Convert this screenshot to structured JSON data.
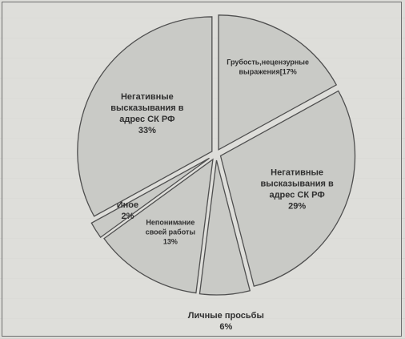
{
  "chart_data": {
    "type": "pie",
    "title": "",
    "slices": [
      {
        "label": "Грубость,нецензурные выражения",
        "value": 17,
        "value_label": "17%"
      },
      {
        "label": "Негативные высказывания в адрес СК РФ",
        "value": 29,
        "value_label": "29%"
      },
      {
        "label": "Личные просьбы",
        "value": 6,
        "value_label": "6%"
      },
      {
        "label": "Непонимание своей работы",
        "value": 13,
        "value_label": "13%"
      },
      {
        "label": "Иное",
        "value": 2,
        "value_label": "2%"
      },
      {
        "label": "Негативные высказывания в адрес СК РФ",
        "value": 33,
        "value_label": "33%"
      }
    ],
    "exploded": true,
    "legend": "none"
  },
  "labels": {
    "slice_0": [
      "Грубость,нецензурные",
      "выражения[17%"
    ],
    "slice_1": [
      "Негативные",
      "высказывания в",
      "адрес СК РФ",
      "29%"
    ],
    "slice_2": [
      "Личные просьбы",
      "6%"
    ],
    "slice_3": [
      "Непонимание",
      "своей работы",
      "13%"
    ],
    "slice_4": [
      "Иное",
      "2%"
    ],
    "slice_5": [
      "Негативные",
      "высказывания в",
      "адрес СК РФ",
      "33%"
    ]
  }
}
